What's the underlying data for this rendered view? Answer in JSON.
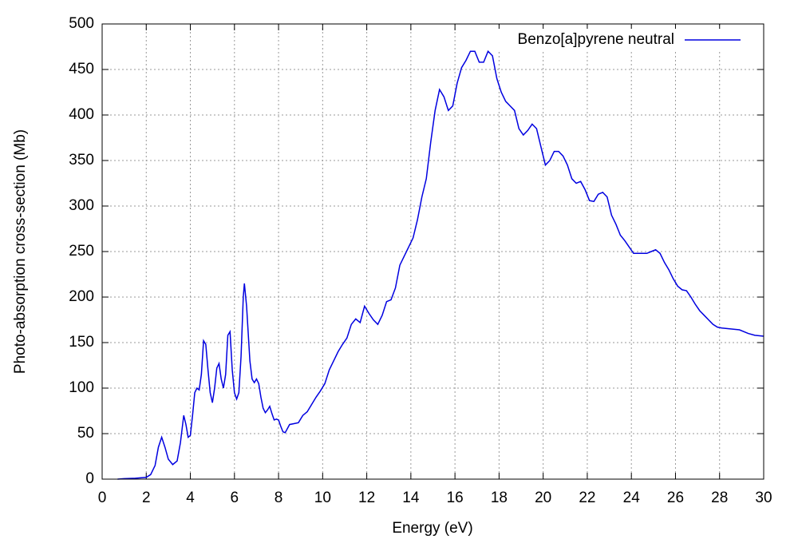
{
  "chart_data": {
    "type": "line",
    "x_label": "Energy (eV)",
    "y_label": "Photo-absorption cross-section (Mb)",
    "xlim": [
      0,
      30
    ],
    "ylim": [
      0,
      500
    ],
    "xticks": [
      0,
      2,
      4,
      6,
      8,
      10,
      12,
      14,
      16,
      18,
      20,
      22,
      24,
      26,
      28,
      30
    ],
    "yticks": [
      0,
      50,
      100,
      150,
      200,
      250,
      300,
      350,
      400,
      450,
      500
    ],
    "grid": true,
    "legend": "upper-right",
    "series": [
      {
        "name": "Benzo[a]pyrene neutral",
        "color": "#0000e0",
        "x": [
          0.7,
          1,
          1.5,
          2,
          2.2,
          2.4,
          2.55,
          2.7,
          2.85,
          3.0,
          3.2,
          3.4,
          3.55,
          3.7,
          3.8,
          3.9,
          4.0,
          4.1,
          4.2,
          4.3,
          4.4,
          4.5,
          4.6,
          4.7,
          4.8,
          4.9,
          5.0,
          5.1,
          5.2,
          5.3,
          5.4,
          5.5,
          5.6,
          5.7,
          5.8,
          5.9,
          6.0,
          6.1,
          6.2,
          6.3,
          6.4,
          6.45,
          6.55,
          6.7,
          6.8,
          6.9,
          7.0,
          7.1,
          7.2,
          7.3,
          7.4,
          7.5,
          7.6,
          7.7,
          7.8,
          7.9,
          8.0,
          8.1,
          8.2,
          8.3,
          8.5,
          8.7,
          8.9,
          9.1,
          9.3,
          9.5,
          9.7,
          9.9,
          10.1,
          10.3,
          10.5,
          10.7,
          10.9,
          11.1,
          11.3,
          11.5,
          11.7,
          11.9,
          12.1,
          12.3,
          12.5,
          12.7,
          12.9,
          13.1,
          13.3,
          13.5,
          13.7,
          13.9,
          14.1,
          14.3,
          14.5,
          14.7,
          14.9,
          15.1,
          15.3,
          15.5,
          15.7,
          15.9,
          16.1,
          16.3,
          16.5,
          16.7,
          16.9,
          17.1,
          17.3,
          17.5,
          17.7,
          17.9,
          18.1,
          18.3,
          18.5,
          18.7,
          18.9,
          19.1,
          19.3,
          19.5,
          19.7,
          19.9,
          20.1,
          20.3,
          20.5,
          20.7,
          20.9,
          21.1,
          21.3,
          21.5,
          21.7,
          21.9,
          22.1,
          22.3,
          22.5,
          22.7,
          22.9,
          23.1,
          23.3,
          23.5,
          23.7,
          23.9,
          24.1,
          24.3,
          24.5,
          24.7,
          24.9,
          25.1,
          25.3,
          25.5,
          25.7,
          25.9,
          26.1,
          26.3,
          26.5,
          26.7,
          26.9,
          27.1,
          27.3,
          27.5,
          27.7,
          27.9,
          28.1,
          28.5,
          28.9,
          29.3,
          29.6,
          30
        ],
        "values": [
          0,
          0.5,
          1,
          2,
          5,
          15,
          35,
          46,
          35,
          22,
          16,
          20,
          40,
          70,
          60,
          46,
          48,
          70,
          95,
          100,
          98,
          115,
          152,
          148,
          120,
          95,
          84,
          100,
          122,
          127,
          110,
          100,
          115,
          158,
          162,
          120,
          95,
          88,
          95,
          135,
          200,
          215,
          190,
          130,
          110,
          106,
          110,
          105,
          90,
          78,
          73,
          76,
          80,
          72,
          65,
          66,
          65,
          58,
          52,
          51,
          60,
          61,
          62,
          70,
          74,
          82,
          90,
          97,
          105,
          120,
          130,
          140,
          148,
          155,
          170,
          176,
          172,
          190,
          182,
          175,
          170,
          180,
          195,
          197,
          210,
          235,
          245,
          255,
          265,
          285,
          310,
          330,
          370,
          405,
          428,
          420,
          405,
          410,
          435,
          452,
          460,
          470,
          470,
          458,
          458,
          470,
          465,
          440,
          425,
          415,
          410,
          405,
          385,
          378,
          383,
          390,
          385,
          365,
          345,
          350,
          360,
          360,
          355,
          345,
          330,
          325,
          327,
          318,
          306,
          305,
          313,
          315,
          310,
          290,
          280,
          268,
          262,
          255,
          248,
          248,
          248,
          248,
          250,
          252,
          248,
          238,
          230,
          220,
          212,
          208,
          207,
          200,
          192,
          185,
          180,
          175,
          170,
          167,
          166,
          165,
          164,
          160,
          158,
          157
        ]
      }
    ]
  }
}
